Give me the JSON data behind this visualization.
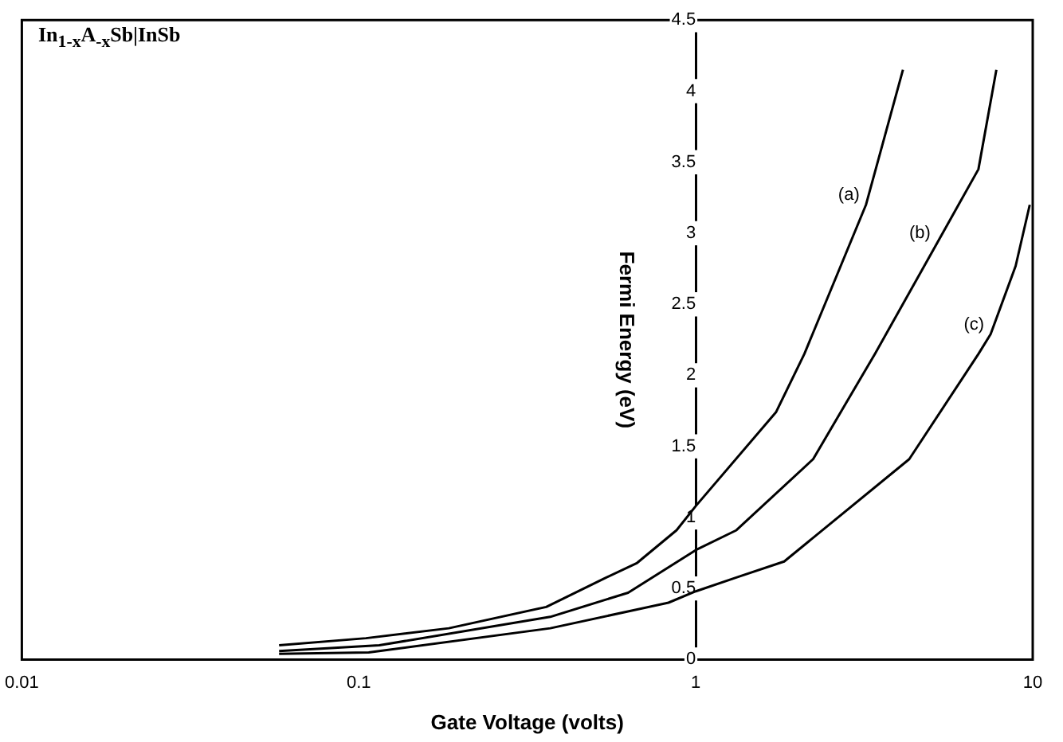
{
  "chart_data": {
    "type": "line",
    "title": "In$_{1-x}$A$_{-x}$Sb|InSb",
    "xlabel": "Gate Voltage (volts)",
    "ylabel": "Fermi Energy (eV)",
    "log": "x",
    "grid": false,
    "legend": false,
    "marker": "none",
    "line_style": "solid",
    "xlim": [
      0.01,
      10
    ],
    "xticks": [
      0.01,
      0.1,
      1,
      10
    ],
    "ylim": [
      0,
      4.5
    ],
    "yticks": [
      0,
      0.5,
      1,
      1.5,
      2,
      2.5,
      3,
      3.5,
      4,
      4.5
    ],
    "series": [
      {
        "color": "#000000",
        "x": [
          0.058,
          0.105,
          0.185,
          0.36,
          0.535,
          0.67,
          0.877,
          1,
          1.73,
          2.1,
          3.2,
          4.12
        ],
        "values": [
          0.1,
          0.15,
          0.22,
          0.37,
          0.57,
          0.68,
          0.91,
          1.08,
          1.74,
          2.15,
          3.2,
          4.15
        ]
      },
      {
        "color": "#000000",
        "x": [
          0.058,
          0.115,
          0.37,
          0.63,
          1,
          1.32,
          2.23,
          3.4,
          5.2,
          6.9,
          7.8
        ],
        "values": [
          0.06,
          0.1,
          0.3,
          0.47,
          0.77,
          0.91,
          1.41,
          2.15,
          2.93,
          3.45,
          4.15
        ]
      },
      {
        "color": "#000000",
        "x": [
          0.058,
          0.107,
          0.37,
          0.83,
          1,
          1.33,
          1.83,
          4.3,
          6.9,
          7.5,
          8.9,
          9.8
        ],
        "values": [
          0.04,
          0.05,
          0.22,
          0.4,
          0.48,
          0.58,
          0.69,
          1.41,
          2.15,
          2.29,
          2.77,
          3.2
        ]
      }
    ],
    "annotations": [
      {
        "text": "(a)",
        "x": 3.2,
        "y": 3.2
      },
      {
        "text": "(b)",
        "x": 5.2,
        "y": 2.93
      },
      {
        "text": "(c)",
        "x": 7.5,
        "y": 2.29
      }
    ]
  }
}
